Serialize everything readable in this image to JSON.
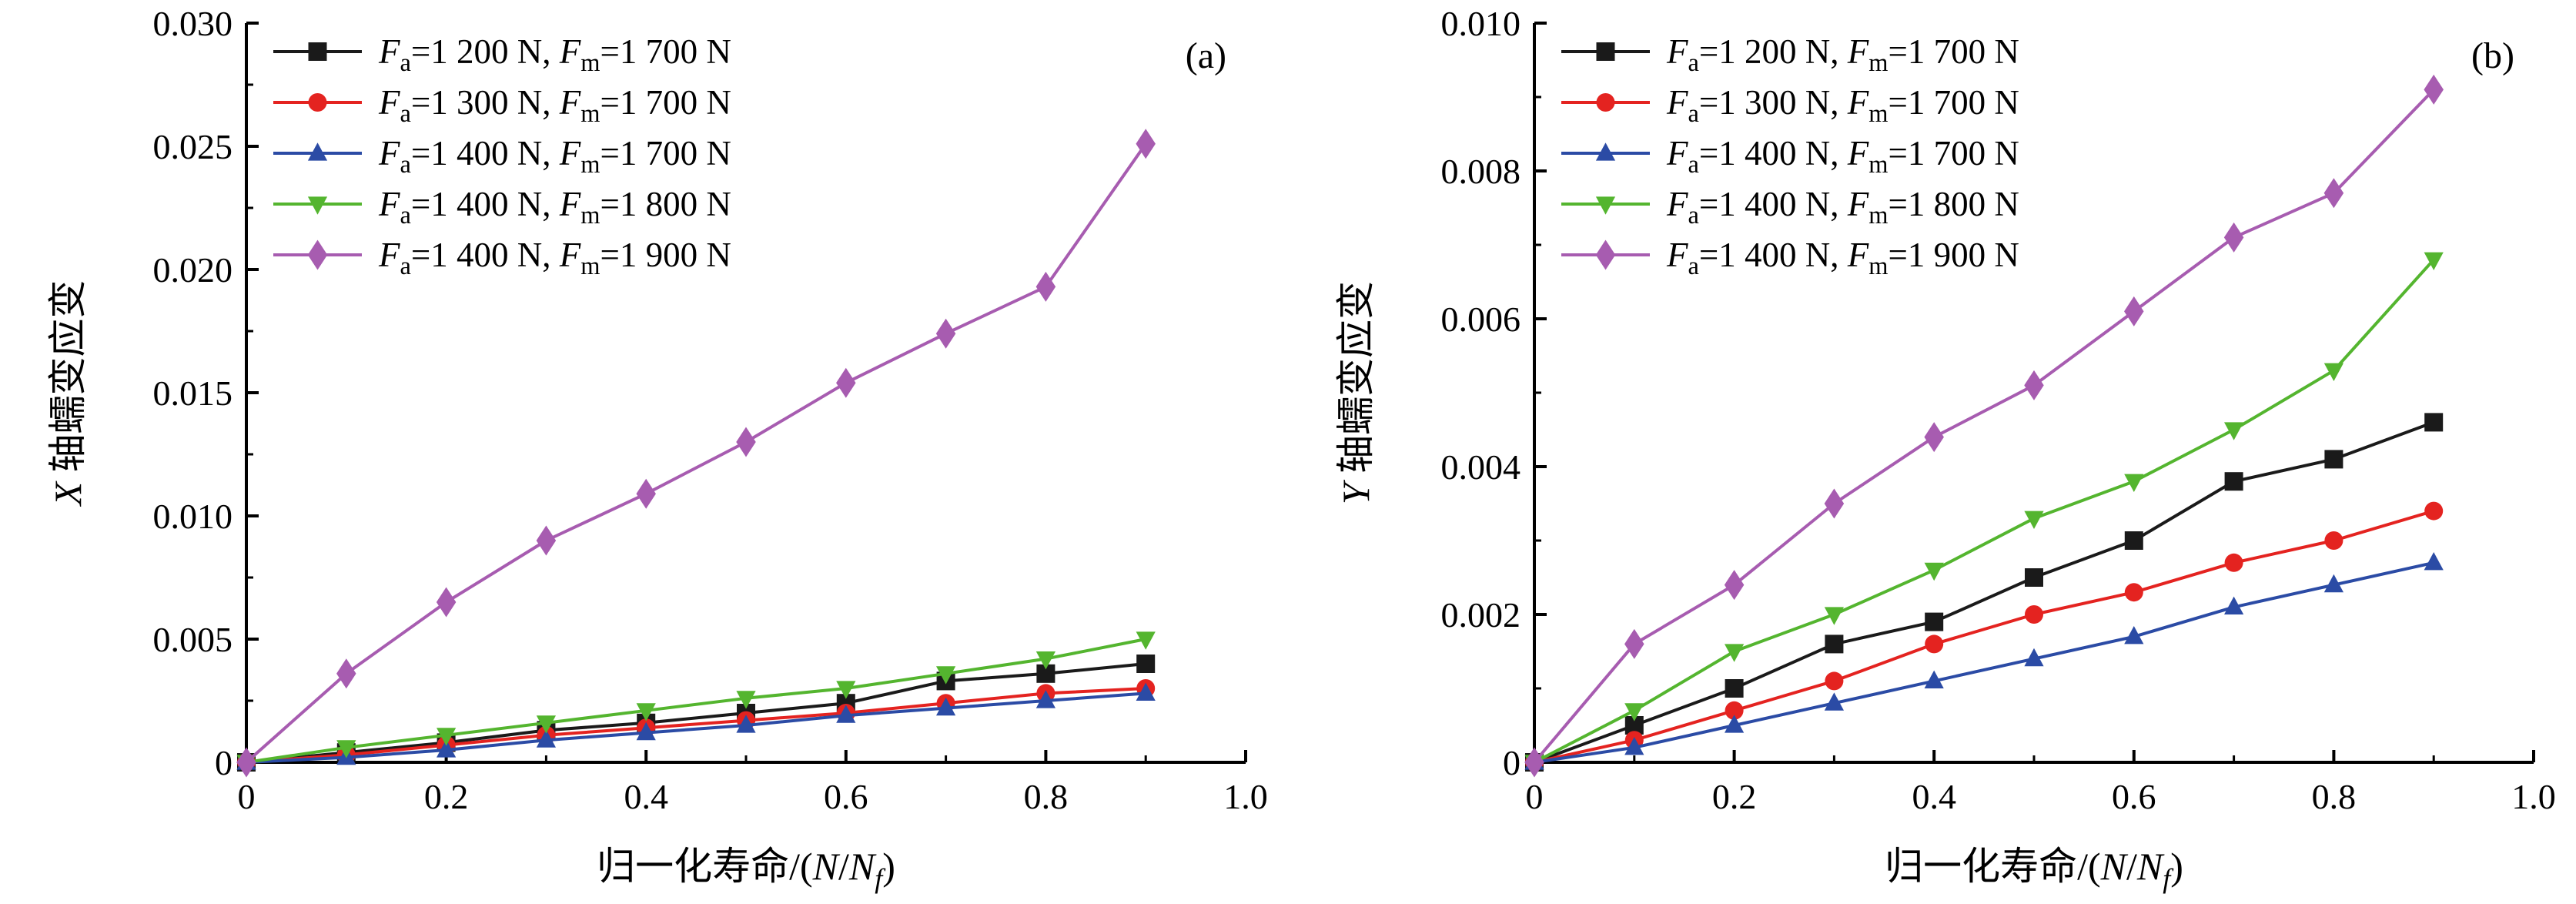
{
  "figure": {
    "background": "#ffffff",
    "panel_count": 2
  },
  "legend_template": {
    "f": "F",
    "sub_a": "a",
    "sub_m": "m",
    "equals": "=",
    "unit": " N",
    "separator": ", "
  },
  "chart_data": [
    {
      "type": "line",
      "panel_label": "(a)",
      "title": "",
      "xlabel": "归一化寿命/(N/Nf)",
      "xlabel_parts": [
        {
          "t": "归一化寿命/("
        },
        {
          "t": "N",
          "style": "italic"
        },
        {
          "t": "/"
        },
        {
          "t": "N",
          "style": "italic"
        },
        {
          "t": "f",
          "style": "italic-sub"
        },
        {
          "t": ")"
        }
      ],
      "ylabel": "X 轴蠕变应变",
      "ylabel_parts": [
        {
          "t": "X",
          "style": "italic"
        },
        {
          "t": " 轴蠕变应变"
        }
      ],
      "xlim": [
        0,
        1.0
      ],
      "ylim": [
        0,
        0.03
      ],
      "xticks": [
        0,
        0.2,
        0.4,
        0.6,
        0.8,
        1.0
      ],
      "xtick_labels": [
        "0",
        "0.2",
        "0.4",
        "0.6",
        "0.8",
        "1.0"
      ],
      "xticks_minor": [
        0.1,
        0.3,
        0.5,
        0.7,
        0.9
      ],
      "yticks": [
        0,
        0.005,
        0.01,
        0.015,
        0.02,
        0.025,
        0.03
      ],
      "ytick_labels": [
        "0",
        "0.005",
        "0.010",
        "0.015",
        "0.020",
        "0.025",
        "0.030"
      ],
      "yticks_minor": [
        0.0025,
        0.0075,
        0.0125,
        0.0175,
        0.0225,
        0.0275
      ],
      "grid": false,
      "legend_position": "top-left",
      "x": [
        0,
        0.1,
        0.2,
        0.3,
        0.4,
        0.5,
        0.6,
        0.7,
        0.8,
        0.9
      ],
      "series": [
        {
          "name": "Fa=1 200 N, Fm=1 700 N",
          "fa": "1 200",
          "fm": "1 700",
          "marker": "square",
          "color": "#1a1a1a",
          "values": [
            0,
            0.0004,
            0.0008,
            0.0013,
            0.0016,
            0.002,
            0.0024,
            0.0033,
            0.0036,
            0.004
          ]
        },
        {
          "name": "Fa=1 300 N, Fm=1 700 N",
          "fa": "1 300",
          "fm": "1 700",
          "marker": "circle",
          "color": "#e42320",
          "values": [
            0,
            0.0003,
            0.0007,
            0.0011,
            0.0014,
            0.0017,
            0.002,
            0.0024,
            0.0028,
            0.003
          ]
        },
        {
          "name": "Fa=1 400 N, Fm=1 700 N",
          "fa": "1 400",
          "fm": "1 700",
          "marker": "triangle-up",
          "color": "#2b4ba5",
          "values": [
            0,
            0.0002,
            0.0005,
            0.0009,
            0.0012,
            0.0015,
            0.0019,
            0.0022,
            0.0025,
            0.0028
          ]
        },
        {
          "name": "Fa=1 400 N, Fm=1 800 N",
          "fa": "1 400",
          "fm": "1 800",
          "marker": "triangle-down",
          "color": "#54b52f",
          "values": [
            0,
            0.0006,
            0.0011,
            0.0016,
            0.0021,
            0.0026,
            0.003,
            0.0036,
            0.0042,
            0.005
          ]
        },
        {
          "name": "Fa=1 400 N, Fm=1 900 N",
          "fa": "1 400",
          "fm": "1 900",
          "marker": "diamond",
          "color": "#a75cb0",
          "values": [
            0,
            0.0036,
            0.0065,
            0.009,
            0.0109,
            0.013,
            0.0154,
            0.0174,
            0.0193,
            0.0251
          ]
        }
      ]
    },
    {
      "type": "line",
      "panel_label": "(b)",
      "title": "",
      "xlabel": "归一化寿命/(N/Nf)",
      "xlabel_parts": [
        {
          "t": "归一化寿命/("
        },
        {
          "t": "N",
          "style": "italic"
        },
        {
          "t": "/"
        },
        {
          "t": "N",
          "style": "italic"
        },
        {
          "t": "f",
          "style": "italic-sub"
        },
        {
          "t": ")"
        }
      ],
      "ylabel": "Y 轴蠕变应变",
      "ylabel_parts": [
        {
          "t": "Y",
          "style": "italic"
        },
        {
          "t": " 轴蠕变应变"
        }
      ],
      "xlim": [
        0,
        1.0
      ],
      "ylim": [
        0,
        0.01
      ],
      "xticks": [
        0,
        0.2,
        0.4,
        0.6,
        0.8,
        1.0
      ],
      "xtick_labels": [
        "0",
        "0.2",
        "0.4",
        "0.6",
        "0.8",
        "1.0"
      ],
      "xticks_minor": [
        0.1,
        0.3,
        0.5,
        0.7,
        0.9
      ],
      "yticks": [
        0,
        0.002,
        0.004,
        0.006,
        0.008,
        0.01
      ],
      "ytick_labels": [
        "0",
        "0.002",
        "0.004",
        "0.006",
        "0.008",
        "0.010"
      ],
      "yticks_minor": [
        0.001,
        0.003,
        0.005,
        0.007,
        0.009
      ],
      "grid": false,
      "legend_position": "top-left",
      "x": [
        0,
        0.1,
        0.2,
        0.3,
        0.4,
        0.5,
        0.6,
        0.7,
        0.8,
        0.9
      ],
      "series": [
        {
          "name": "Fa=1 200 N, Fm=1 700 N",
          "fa": "1 200",
          "fm": "1 700",
          "marker": "square",
          "color": "#1a1a1a",
          "values": [
            0,
            0.0005,
            0.001,
            0.0016,
            0.0019,
            0.0025,
            0.003,
            0.0038,
            0.0041,
            0.0046
          ]
        },
        {
          "name": "Fa=1 300 N, Fm=1 700 N",
          "fa": "1 300",
          "fm": "1 700",
          "marker": "circle",
          "color": "#e42320",
          "values": [
            0,
            0.0003,
            0.0007,
            0.0011,
            0.0016,
            0.002,
            0.0023,
            0.0027,
            0.003,
            0.0034
          ]
        },
        {
          "name": "Fa=1 400 N, Fm=1 700 N",
          "fa": "1 400",
          "fm": "1 700",
          "marker": "triangle-up",
          "color": "#2b4ba5",
          "values": [
            0,
            0.0002,
            0.0005,
            0.0008,
            0.0011,
            0.0014,
            0.0017,
            0.0021,
            0.0024,
            0.0027
          ]
        },
        {
          "name": "Fa=1 400 N, Fm=1 800 N",
          "fa": "1 400",
          "fm": "1 800",
          "marker": "triangle-down",
          "color": "#54b52f",
          "values": [
            0,
            0.0007,
            0.0015,
            0.002,
            0.0026,
            0.0033,
            0.0038,
            0.0045,
            0.0053,
            0.0068
          ]
        },
        {
          "name": "Fa=1 400 N, Fm=1 900 N",
          "fa": "1 400",
          "fm": "1 900",
          "marker": "diamond",
          "color": "#a75cb0",
          "values": [
            0,
            0.0016,
            0.0024,
            0.0035,
            0.0044,
            0.0051,
            0.0061,
            0.0071,
            0.0077,
            0.0091
          ]
        }
      ]
    }
  ]
}
